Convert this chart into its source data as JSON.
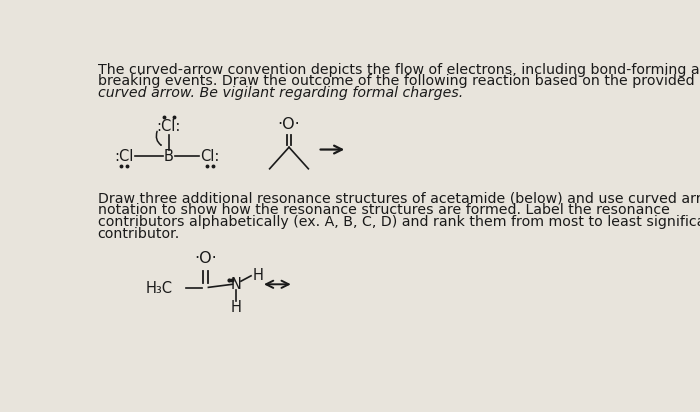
{
  "bg_color": "#e8e4dc",
  "text_color": "#1a1a1a",
  "paragraph1_line1": "The curved-arrow convention depicts the flow of electrons, including bond-forming and",
  "paragraph1_line2": "breaking events. Draw the outcome of the following reaction based on the provided",
  "paragraph1_line3": "curved arrow. Be vigilant regarding formal charges.",
  "paragraph2_line1": "Draw three additional resonance structures of acetamide (below) and use curved arrow",
  "paragraph2_line2": "notation to show how the resonance structures are formed. Label the resonance",
  "paragraph2_line3": "contributors alphabetically (ex. A, B, C, D) and rank them from most to least significant",
  "paragraph2_line4": "contributor.",
  "font_size_text": 10.2,
  "fig_width": 7.0,
  "fig_height": 4.12
}
